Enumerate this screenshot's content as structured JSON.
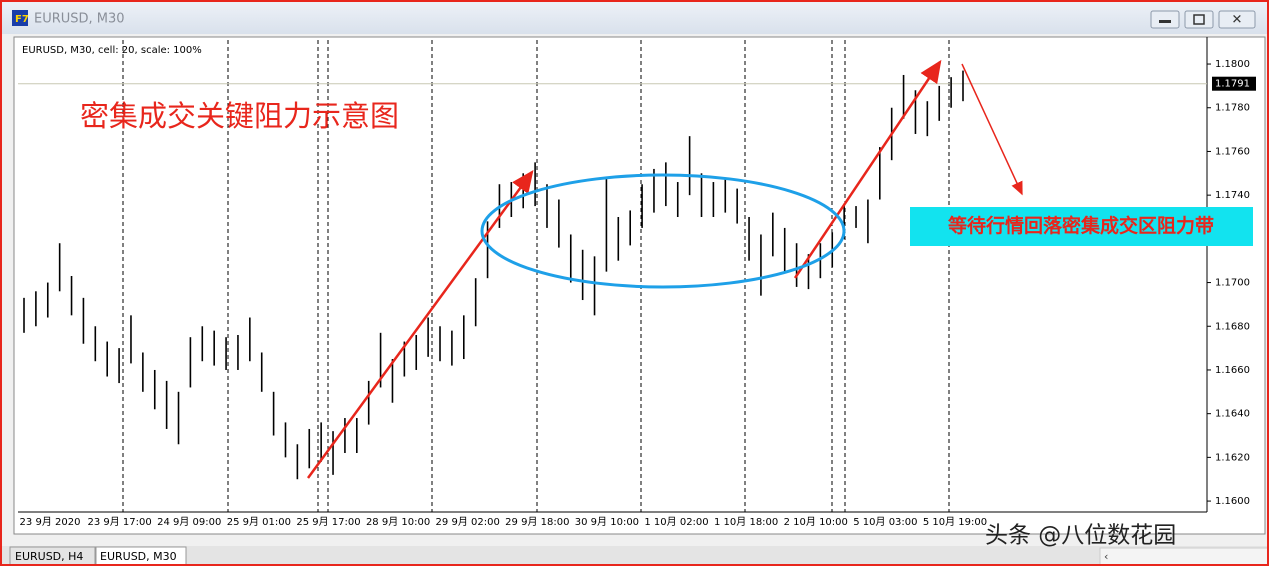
{
  "window": {
    "title": "EURUSD, M30"
  },
  "chart_info": "EURUSD, M30, cell: 20, scale: 100%",
  "tabs": [
    "EURUSD, H4",
    "EURUSD, M30"
  ],
  "watermark": "头条 @八位数花园",
  "chart_data": {
    "type": "ohlc",
    "annotations": [
      "密集成交关键阻力示意图",
      "等待行情回落密集成交区阻力带"
    ],
    "x_labels": [
      "23 9月 2020",
      "23 9月 17:00",
      "24 9月 09:00",
      "25 9月 01:00",
      "25 9月 17:00",
      "28 9月 10:00",
      "29 9月 02:00",
      "29 9月 18:00",
      "30 9月 10:00",
      "1 10月 02:00",
      "1 10月 18:00",
      "2 10月 10:00",
      "5 10月 03:00",
      "5 10月 19:00"
    ],
    "color": "#000000",
    "highs": [
      1.1693,
      1.1696,
      1.17,
      1.1718,
      1.1703,
      1.1693,
      1.168,
      1.1673,
      1.167,
      1.1685,
      1.1668,
      1.166,
      1.1655,
      1.165,
      1.1675,
      1.168,
      1.1678,
      1.1675,
      1.1676,
      1.1684,
      1.1668,
      1.165,
      1.1636,
      1.1626,
      1.1633,
      1.1636,
      1.1632,
      1.1638,
      1.1638,
      1.1655,
      1.1677,
      1.1665,
      1.1673,
      1.1676,
      1.1684,
      1.168,
      1.1678,
      1.1685,
      1.1702,
      1.1728,
      1.1745,
      1.1746,
      1.175,
      1.1755,
      1.1745,
      1.1738,
      1.1722,
      1.1715,
      1.1712,
      1.1748,
      1.173,
      1.1733,
      1.1745,
      1.1752,
      1.1755,
      1.1746,
      1.1767,
      1.175,
      1.1746,
      1.1748,
      1.1743,
      1.173,
      1.1722,
      1.1732,
      1.1725,
      1.1718,
      1.1713,
      1.1718,
      1.1723,
      1.1736,
      1.1735,
      1.1738,
      1.1762,
      1.178,
      1.1795,
      1.1788,
      1.1783,
      1.179,
      1.1794,
      1.1797
    ],
    "lows": [
      1.1677,
      1.168,
      1.1684,
      1.1696,
      1.1685,
      1.1672,
      1.1664,
      1.1657,
      1.1654,
      1.1663,
      1.165,
      1.1642,
      1.1633,
      1.1626,
      1.1652,
      1.1664,
      1.1662,
      1.166,
      1.166,
      1.1664,
      1.165,
      1.163,
      1.162,
      1.161,
      1.1615,
      1.1618,
      1.1612,
      1.1622,
      1.1622,
      1.1635,
      1.1652,
      1.1645,
      1.1657,
      1.166,
      1.1666,
      1.1664,
      1.1662,
      1.1665,
      1.168,
      1.1702,
      1.1725,
      1.173,
      1.1734,
      1.1735,
      1.1725,
      1.1716,
      1.17,
      1.1692,
      1.1685,
      1.1705,
      1.171,
      1.1717,
      1.1725,
      1.1732,
      1.1735,
      1.173,
      1.174,
      1.173,
      1.173,
      1.1732,
      1.1727,
      1.171,
      1.1694,
      1.1712,
      1.1705,
      1.1698,
      1.1697,
      1.1702,
      1.1707,
      1.172,
      1.1725,
      1.1718,
      1.1738,
      1.1756,
      1.1775,
      1.1768,
      1.1767,
      1.1774,
      1.178,
      1.1783
    ],
    "current_price": {
      "value": 1.1791,
      "label": "1.1791"
    },
    "ylim": [
      1.1595,
      1.1811
    ],
    "yticks": [
      {
        "value": 1.16,
        "label": "1.1600"
      },
      {
        "value": 1.162,
        "label": "1.1620"
      },
      {
        "value": 1.164,
        "label": "1.1640"
      },
      {
        "value": 1.166,
        "label": "1.1660"
      },
      {
        "value": 1.168,
        "label": "1.1680"
      },
      {
        "value": 1.17,
        "label": "1.1700"
      },
      {
        "value": 1.172,
        "label": "1.1720"
      },
      {
        "value": 1.174,
        "label": "1.1740"
      },
      {
        "value": 1.176,
        "label": "1.1760"
      },
      {
        "value": 1.178,
        "label": "1.1780"
      },
      {
        "value": 1.18,
        "label": "1.1800"
      }
    ]
  }
}
